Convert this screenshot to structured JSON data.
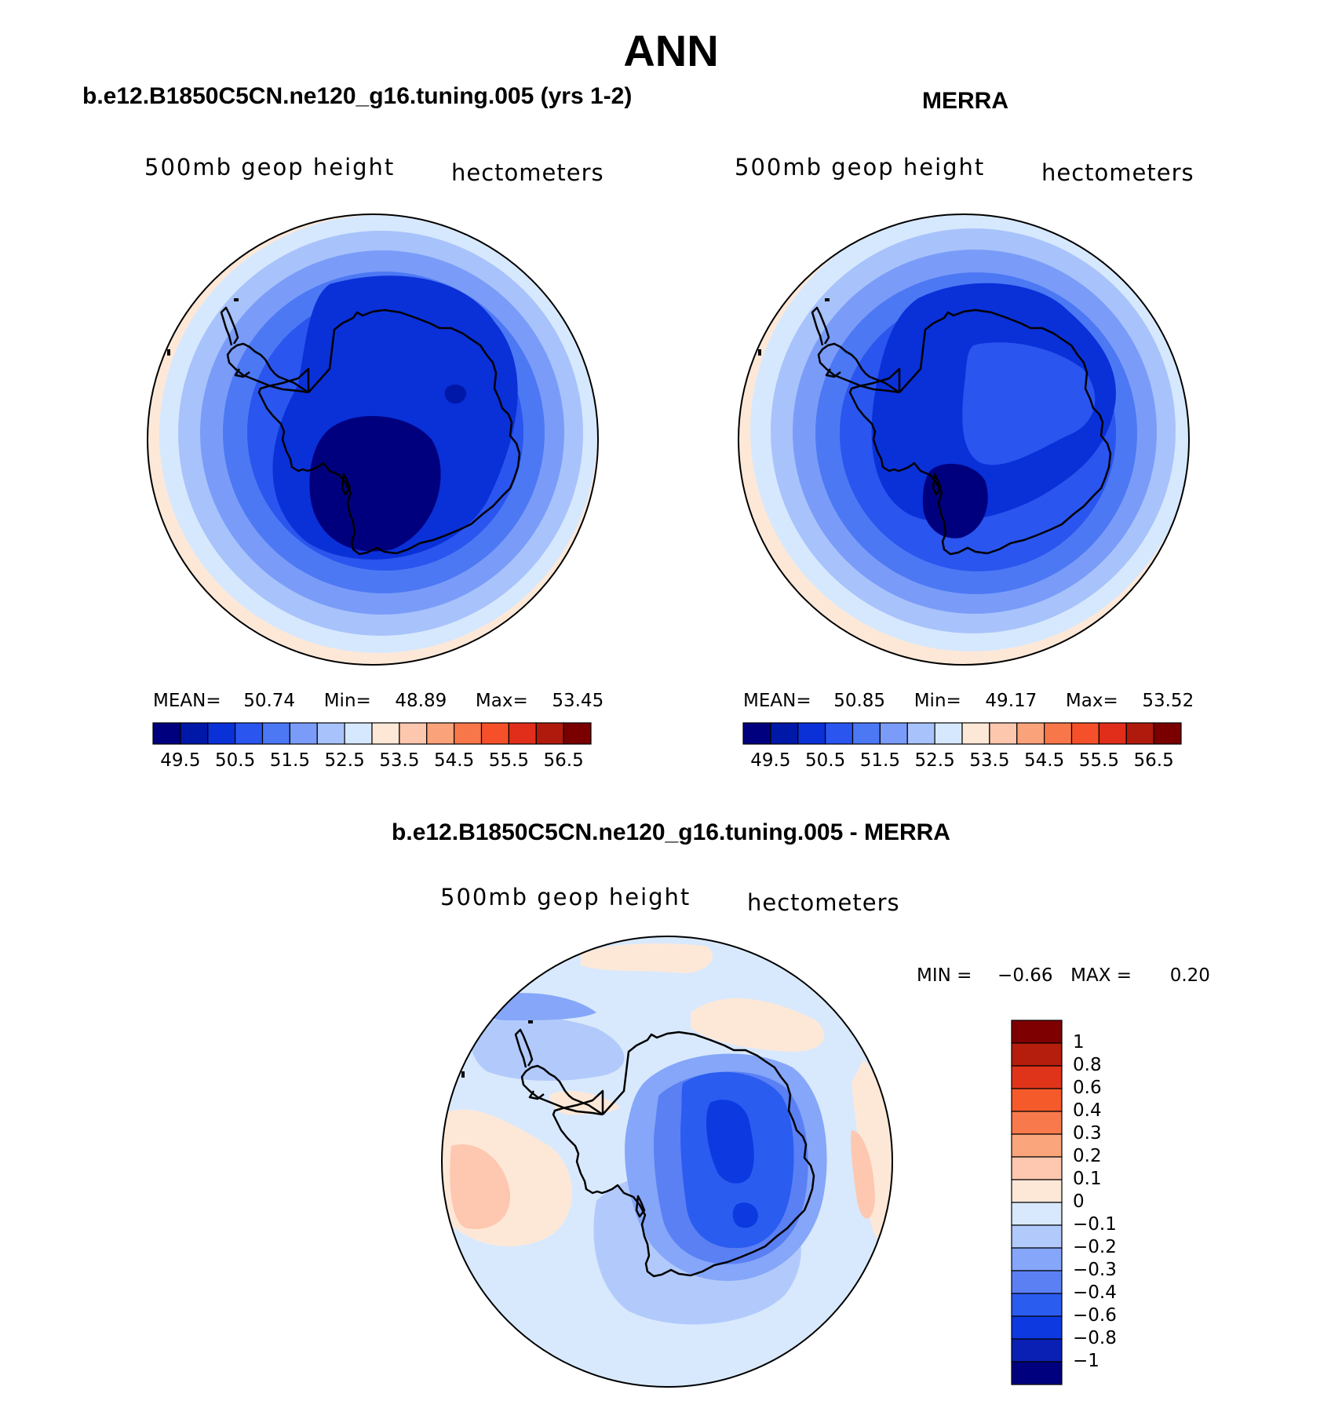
{
  "main_title": "ANN",
  "panels": {
    "left": {
      "title": "b.e12.B1850C5CN.ne120_g16.tuning.005 (yrs 1-2)",
      "variable": "500mb geop height",
      "units": "hectometers",
      "stats": {
        "mean_label": "MEAN=",
        "mean": "50.74",
        "min_label": "Min=",
        "min": "48.89",
        "max_label": "Max=",
        "max": "53.45"
      }
    },
    "right": {
      "title": "MERRA",
      "variable": "500mb geop height",
      "units": "hectometers",
      "stats": {
        "mean_label": "MEAN=",
        "mean": "50.85",
        "min_label": "Min=",
        "min": "49.17",
        "max_label": "Max=",
        "max": "53.52"
      }
    },
    "bottom": {
      "title": "b.e12.B1850C5CN.ne120_g16.tuning.005 - MERRA",
      "variable": "500mb geop height",
      "units": "hectometers",
      "minmax": {
        "min_label": "MIN =",
        "min": "−0.66",
        "max_label": "MAX =",
        "max": "0.20"
      }
    }
  },
  "colorbar_height": {
    "colors": [
      "#00007f",
      "#0018a8",
      "#0a30d8",
      "#2a55ee",
      "#4c78f4",
      "#7a9cf8",
      "#a8c2fb",
      "#d6e8fd",
      "#fde8d8",
      "#fdc7ae",
      "#faa27a",
      "#f7774a",
      "#f5502a",
      "#e02e1a",
      "#b01a0c",
      "#7a0000"
    ],
    "ticks": [
      "49.5",
      "50.5",
      "51.5",
      "52.5",
      "53.5",
      "54.5",
      "55.5",
      "56.5"
    ]
  },
  "colorbar_diff": {
    "colors": [
      "#00007f",
      "#0a1fb4",
      "#0c3ae0",
      "#2a5cf0",
      "#5a80f4",
      "#85a6f9",
      "#b2cafb",
      "#d8e9fd",
      "#fde8d8",
      "#fdc8af",
      "#fba57c",
      "#f87a4c",
      "#f55a2a",
      "#e0341a",
      "#b51e0d",
      "#7f0000"
    ],
    "ticks": [
      "1",
      "0.8",
      "0.6",
      "0.4",
      "0.3",
      "0.2",
      "0.1",
      "0",
      "−0.1",
      "−0.2",
      "−0.3",
      "−0.4",
      "−0.6",
      "−0.8",
      "−1"
    ]
  }
}
